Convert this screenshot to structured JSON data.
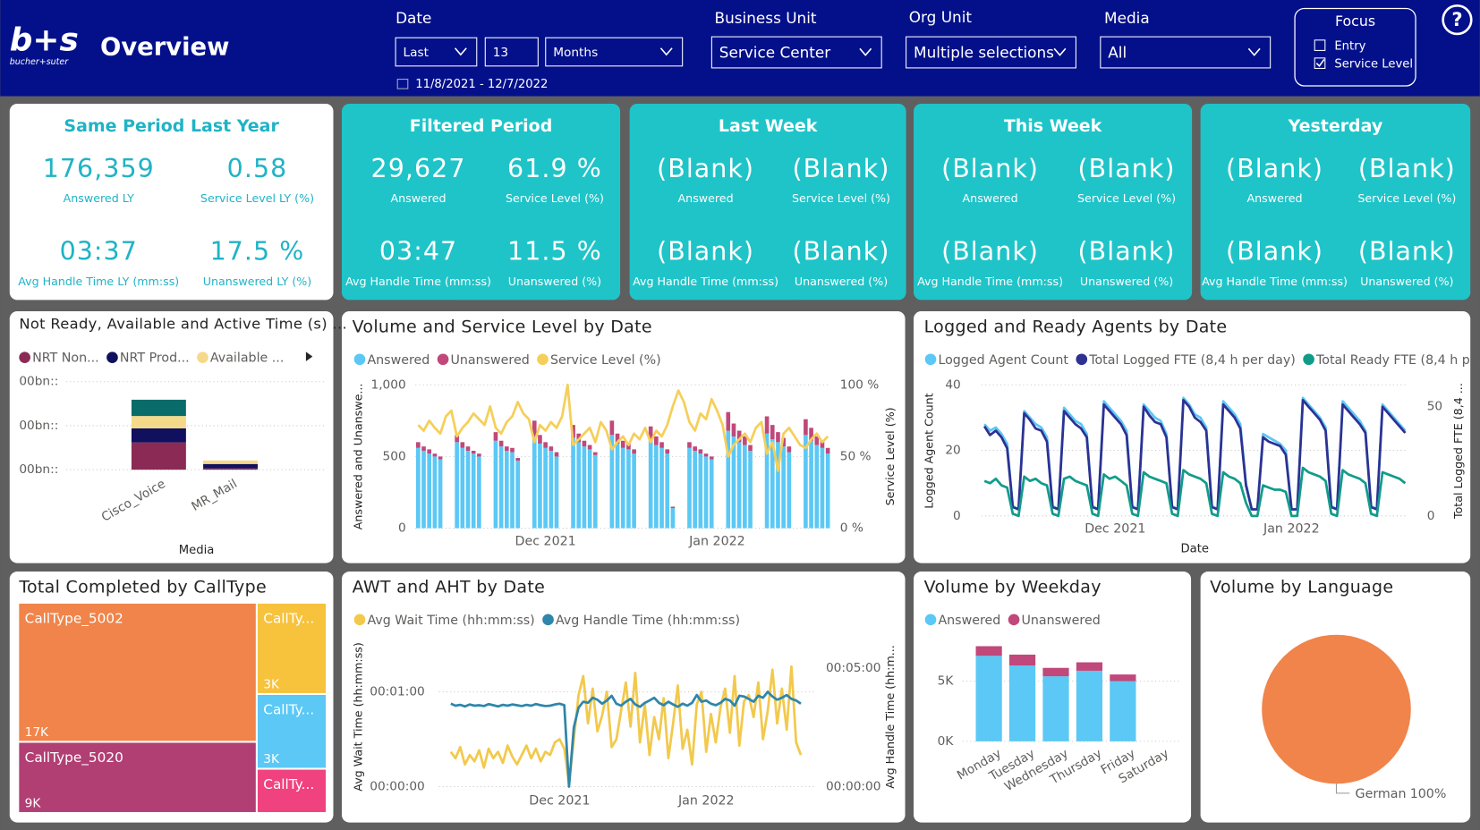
{
  "header": {
    "logo": "b+s",
    "logo_sub": "bucher+suter",
    "title": "Overview",
    "help": "?"
  },
  "filters": [
    {
      "label": "Date",
      "controls": [
        "Last",
        "13",
        "Months"
      ],
      "range": "11/8/2021 - 12/7/2022"
    },
    {
      "label": "Business Unit",
      "controls": [
        "Service Center"
      ]
    },
    {
      "label": "Org Unit",
      "controls": [
        "Multiple selections"
      ]
    },
    {
      "label": "Media",
      "controls": [
        "All"
      ]
    }
  ],
  "focus": {
    "title": "Focus",
    "options": [
      {
        "label": "Entry",
        "checked": false
      },
      {
        "label": "Service Level",
        "checked": true
      }
    ]
  },
  "kpi_cards": [
    {
      "title": "Same Period Last Year",
      "metrics": [
        {
          "value": "176,359",
          "label": "Answered LY"
        },
        {
          "value": "0.58",
          "label": "Service Level LY (%)"
        },
        {
          "value": "03:37",
          "label": "Avg Handle Time LY (mm:ss)"
        },
        {
          "value": "17.5 %",
          "label": "Unanswered LY (%)"
        }
      ]
    },
    {
      "title": "Filtered Period",
      "metrics": [
        {
          "value": "29,627",
          "label": "Answered"
        },
        {
          "value": "61.9 %",
          "label": "Service Level (%)"
        },
        {
          "value": "03:47",
          "label": "Avg Handle Time (mm:ss)"
        },
        {
          "value": "11.5 %",
          "label": "Unanswered (%)"
        }
      ]
    },
    {
      "title": "Last Week",
      "metrics": [
        {
          "value": "(Blank)",
          "label": "Answered"
        },
        {
          "value": "(Blank)",
          "label": "Service Level (%)"
        },
        {
          "value": "(Blank)",
          "label": "Avg Handle Time (mm:ss)"
        },
        {
          "value": "(Blank)",
          "label": "Unanswered (%)"
        }
      ]
    },
    {
      "title": "This Week",
      "metrics": [
        {
          "value": "(Blank)",
          "label": "Answered"
        },
        {
          "value": "(Blank)",
          "label": "Service Level (%)"
        },
        {
          "value": "(Blank)",
          "label": "Avg Handle Time (mm:ss)"
        },
        {
          "value": "(Blank)",
          "label": "Unanswered (%)"
        }
      ]
    },
    {
      "title": "Yesterday",
      "metrics": [
        {
          "value": "(Blank)",
          "label": "Answered"
        },
        {
          "value": "(Blank)",
          "label": "Service Level (%)"
        },
        {
          "value": "(Blank)",
          "label": "Avg Handle Time (mm:ss)"
        },
        {
          "value": "(Blank)",
          "label": "Unanswered (%)"
        }
      ]
    }
  ],
  "charts": {
    "agent_time": {
      "type": "bar",
      "title": "Not Ready, Available and Active Time (s) ...",
      "categories": [
        "Cisco_Voice",
        "MR_Mail"
      ],
      "x_label": "Media",
      "ylim": [
        0,
        2.1
      ],
      "yticks": [
        {
          "value": 0,
          "label": "00bn::"
        },
        {
          "value": 1,
          "label": "00bn::"
        },
        {
          "value": 2,
          "label": "00bn::"
        }
      ],
      "grid": true,
      "series": [
        {
          "name": "NRT Non...",
          "color": "#8b2a55",
          "values": [
            0.62,
            0.03
          ]
        },
        {
          "name": "NRT Prod...",
          "color": "#10105e",
          "values": [
            0.32,
            0.1
          ]
        },
        {
          "name": "Available ...",
          "color": "#f5d98a",
          "values": [
            0.28,
            0.08
          ]
        },
        {
          "color": "#0a6b6b",
          "values": [
            0.37,
            0
          ]
        }
      ]
    },
    "volume_sl": {
      "type": "combo",
      "title": "Volume and Service Level by Date",
      "y_label": "Answered and Unanswe...",
      "y2_label": "Service Level (%)",
      "xlim": [
        -0.5,
        74.5
      ],
      "xticks": [
        {
          "value": 23,
          "label": "Dec 2021"
        },
        {
          "value": 54,
          "label": "Jan 2022"
        }
      ],
      "ylim": [
        0,
        1000
      ],
      "yticks": [
        0,
        500,
        {
          "value": 1000,
          "label": "1,000"
        }
      ],
      "y2lim": [
        0,
        100
      ],
      "y2ticks": [
        {
          "value": 0,
          "label": "0 %"
        },
        {
          "value": 50,
          "label": "50 %"
        },
        {
          "value": 100,
          "label": "100 %"
        }
      ],
      "grid": true,
      "series": [
        {
          "name": "Answered",
          "type": "bar",
          "color": "#5bc8f5",
          "values": [
            560,
            540,
            520,
            500,
            480,
            null,
            null,
            600,
            560,
            540,
            520,
            500,
            null,
            null,
            610,
            570,
            540,
            530,
            470,
            null,
            null,
            640,
            590,
            560,
            540,
            500,
            null,
            null,
            630,
            600,
            570,
            550,
            510,
            null,
            null,
            650,
            590,
            560,
            550,
            520,
            null,
            null,
            620,
            580,
            560,
            520,
            140,
            null,
            null,
            560,
            540,
            520,
            500,
            480,
            null,
            null,
            680,
            640,
            600,
            580,
            540,
            null,
            null,
            660,
            620,
            600,
            570,
            530,
            null,
            null,
            650,
            610,
            580,
            560,
            520
          ]
        },
        {
          "name": "Unanswered",
          "type": "bar",
          "color": "#c0487a",
          "values": [
            40,
            30,
            30,
            20,
            20,
            null,
            null,
            50,
            40,
            30,
            20,
            20,
            null,
            null,
            60,
            40,
            30,
            30,
            20,
            null,
            null,
            110,
            60,
            40,
            30,
            30,
            null,
            null,
            90,
            60,
            40,
            30,
            20,
            null,
            null,
            100,
            70,
            50,
            40,
            30,
            null,
            null,
            90,
            60,
            40,
            30,
            10,
            null,
            null,
            40,
            30,
            30,
            20,
            20,
            null,
            null,
            130,
            90,
            80,
            60,
            40,
            null,
            null,
            120,
            100,
            70,
            60,
            40,
            null,
            null,
            110,
            90,
            60,
            50,
            40
          ]
        },
        {
          "name": "Service Level (%)",
          "type": "line",
          "axis": "y2",
          "color": "#f5cf5a",
          "values": [
            72,
            68,
            75,
            70,
            66,
            78,
            82,
            64,
            70,
            74,
            80,
            76,
            72,
            85,
            70,
            66,
            74,
            78,
            88,
            80,
            76,
            60,
            72,
            68,
            74,
            70,
            78,
            100,
            58,
            62,
            66,
            70,
            60,
            74,
            68,
            55,
            60,
            64,
            58,
            66,
            62,
            70,
            60,
            68,
            64,
            72,
            85,
            96,
            88,
            74,
            68,
            80,
            76,
            90,
            82,
            72,
            50,
            58,
            62,
            66,
            60,
            70,
            74,
            52,
            60,
            40,
            66,
            70,
            64,
            58,
            56,
            62,
            66,
            60,
            64
          ]
        }
      ]
    },
    "agents": {
      "type": "line",
      "title": "Logged and Ready Agents by Date",
      "y_label": "Logged Agent Count",
      "y2_label": "Total Logged FTE (8,4 ...",
      "x_label": "Date",
      "xlim": [
        -0.5,
        74.5
      ],
      "xticks": [
        {
          "value": 23,
          "label": "Dec 2021"
        },
        {
          "value": 54,
          "label": "Jan 2022"
        }
      ],
      "ylim": [
        0,
        40
      ],
      "yticks": [
        0,
        20,
        40
      ],
      "y2lim": [
        0,
        60
      ],
      "y2ticks": [
        0,
        50
      ],
      "grid": true,
      "series": [
        {
          "name": "Logged Agent Count",
          "color": "#5bc8f5",
          "values": [
            28,
            26,
            27,
            25,
            22,
            3,
            2,
            32,
            30,
            28,
            27,
            24,
            3,
            2,
            33,
            31,
            29,
            28,
            25,
            3,
            2,
            35,
            33,
            31,
            29,
            26,
            3,
            2,
            34,
            32,
            30,
            29,
            25,
            3,
            2,
            36,
            34,
            31,
            30,
            27,
            3,
            2,
            35,
            33,
            31,
            28,
            10,
            2,
            2,
            25,
            24,
            23,
            22,
            20,
            2,
            2,
            36,
            34,
            32,
            30,
            27,
            3,
            2,
            35,
            33,
            31,
            29,
            26,
            3,
            2,
            34,
            32,
            30,
            28,
            26
          ]
        },
        {
          "name": "Total Logged FTE (8,4 h per day)",
          "axis": "y2",
          "color": "#2e3192",
          "values": [
            41,
            37,
            39,
            36,
            31,
            4,
            3,
            47,
            44,
            40,
            39,
            34,
            4,
            3,
            48,
            45,
            42,
            40,
            36,
            4,
            3,
            51,
            48,
            45,
            42,
            37,
            4,
            3,
            50,
            46,
            43,
            42,
            36,
            4,
            3,
            53,
            50,
            45,
            43,
            39,
            4,
            3,
            51,
            48,
            45,
            40,
            14,
            3,
            3,
            36,
            34,
            33,
            32,
            28,
            3,
            3,
            53,
            50,
            47,
            44,
            39,
            4,
            3,
            51,
            48,
            45,
            42,
            38,
            4,
            3,
            50,
            47,
            44,
            41,
            38
          ]
        },
        {
          "name": "Total Ready FTE (8,4 h p...",
          "axis": "y2",
          "color": "#119c8a",
          "values": [
            16,
            15,
            17,
            14,
            13,
            1,
            0,
            18,
            16,
            17,
            15,
            14,
            1,
            0,
            17,
            18,
            16,
            15,
            14,
            1,
            0,
            19,
            17,
            18,
            16,
            14,
            1,
            0,
            20,
            18,
            17,
            16,
            15,
            1,
            0,
            21,
            19,
            18,
            17,
            15,
            1,
            0,
            20,
            18,
            17,
            15,
            6,
            0,
            0,
            14,
            13,
            12,
            12,
            11,
            0,
            0,
            22,
            20,
            19,
            18,
            16,
            1,
            0,
            21,
            19,
            18,
            17,
            15,
            1,
            0,
            20,
            19,
            18,
            17,
            15
          ]
        }
      ]
    },
    "calltype": {
      "type": "treemap",
      "title": "Total Completed by CallType",
      "categories": [
        "CallType_5002",
        "CallType_5020",
        "CallTy...",
        "CallTy...",
        "CallTy..."
      ],
      "values": [
        17000,
        8700,
        3300,
        2700,
        1600
      ],
      "value_labels": [
        "17K",
        "9K",
        "3K",
        "3K",
        null
      ],
      "colors": [
        "#f0844a",
        "#b13f74",
        "#f7c23c",
        "#5bc8f5",
        "#f0427e"
      ]
    },
    "awt_aht": {
      "type": "line",
      "title": "AWT and AHT by Date",
      "y_label": "Avg Wait Time (hh:mm:ss)",
      "y2_label": "Avg Handle Time (hh:m...",
      "xlim": [
        -0.5,
        74.5
      ],
      "xticks": [
        {
          "value": 23,
          "label": "Dec 2021"
        },
        {
          "value": 54,
          "label": "Jan 2022"
        }
      ],
      "ylim": [
        0,
        80
      ],
      "yticks": [
        {
          "value": 0,
          "label": "00:00:00"
        },
        {
          "value": 60,
          "label": "00:01:00"
        }
      ],
      "y2lim": [
        0,
        320
      ],
      "y2ticks": [
        {
          "value": 0,
          "label": "00:00:00"
        },
        {
          "value": 300,
          "label": "00:05:00"
        }
      ],
      "grid": true,
      "series": [
        {
          "name": "Avg Wait Time (hh:mm:ss)",
          "color": "#f2c94c",
          "values": [
            22,
            18,
            25,
            14,
            20,
            16,
            23,
            12,
            24,
            18,
            22,
            15,
            26,
            19,
            14,
            20,
            26,
            18,
            24,
            16,
            22,
            20,
            28,
            30,
            24,
            2,
            30,
            58,
            70,
            40,
            62,
            35,
            45,
            60,
            25,
            30,
            48,
            66,
            38,
            72,
            28,
            52,
            20,
            44,
            30,
            56,
            18,
            40,
            64,
            24,
            36,
            14,
            52,
            60,
            22,
            46,
            28,
            50,
            62,
            34,
            70,
            26,
            54,
            58,
            44,
            66,
            30,
            48,
            74,
            40,
            62,
            36,
            76,
            28,
            20
          ]
        },
        {
          "name": "Avg Handle Time (hh:mm:ss)",
          "axis": "y2",
          "color": "#2e86ab",
          "values": [
            210,
            205,
            207,
            203,
            208,
            205,
            206,
            204,
            209,
            206,
            203,
            207,
            205,
            208,
            206,
            204,
            207,
            205,
            209,
            206,
            204,
            205,
            208,
            210,
            206,
            0,
            150,
            200,
            215,
            212,
            225,
            220,
            210,
            218,
            230,
            210,
            205,
            215,
            222,
            208,
            202,
            212,
            218,
            225,
            212,
            206,
            215,
            208,
            202,
            210,
            205,
            212,
            232,
            215,
            218,
            210,
            206,
            212,
            222,
            218,
            205,
            230,
            228,
            222,
            215,
            230,
            225,
            240,
            228,
            220,
            225,
            232,
            222,
            218,
            210
          ]
        }
      ]
    },
    "weekday": {
      "type": "bar",
      "title": "Volume by Weekday",
      "categories": [
        "Monday",
        "Tuesday",
        "Wednesday",
        "Thursday",
        "Friday",
        "Saturday"
      ],
      "ylim": [
        0,
        8300
      ],
      "yticks": [
        {
          "value": 0,
          "label": "0K"
        },
        {
          "value": 5000,
          "label": "5K"
        }
      ],
      "grid": true,
      "series": [
        {
          "name": "Answered",
          "color": "#5bc8f5",
          "values": [
            7100,
            6300,
            5400,
            5860,
            5000,
            0
          ]
        },
        {
          "name": "Unanswered",
          "color": "#c0487a",
          "values": [
            800,
            900,
            700,
            700,
            550,
            0
          ]
        }
      ]
    },
    "language": {
      "type": "pie",
      "title": "Volume by Language",
      "categories": [
        "German"
      ],
      "values": [
        100
      ],
      "value_labels": [
        "100%"
      ],
      "colors": [
        "#f0844a"
      ]
    }
  }
}
